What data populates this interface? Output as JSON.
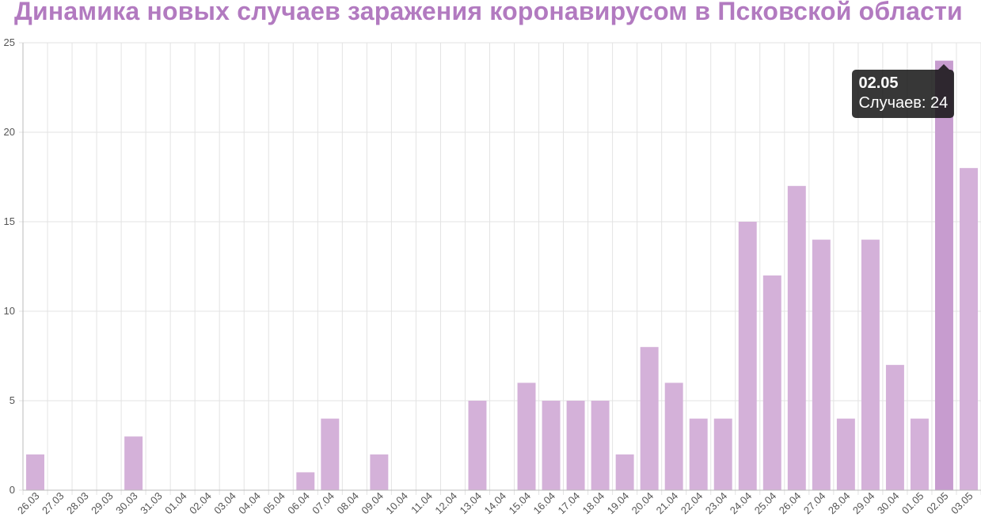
{
  "title": "Динамика новых случаев заражения коронавирусом в Псковской области",
  "colors": {
    "title": "#b27ac0",
    "bar": "#d4b1d9",
    "bar_active": "#c79ccf",
    "grid": "#e3e3e3",
    "axis": "#bbbbbb"
  },
  "tooltip": {
    "title": "02.05",
    "body": "Случаев: 24"
  },
  "chart_data": {
    "type": "bar",
    "title": "Динамика новых случаев заражения коронавирусом в Псковской области",
    "xlabel": "",
    "ylabel": "",
    "ylim": [
      0,
      25
    ],
    "yticks": [
      0,
      5,
      10,
      15,
      20,
      25
    ],
    "grid": true,
    "legend": "none",
    "active_index": 37,
    "categories": [
      "26.03",
      "27.03",
      "28.03",
      "29.03",
      "30.03",
      "31.03",
      "01.04",
      "02.04",
      "03.04",
      "04.04",
      "05.04",
      "06.04",
      "07.04",
      "08.04",
      "09.04",
      "10.04",
      "11.04",
      "12.04",
      "13.04",
      "14.04",
      "15.04",
      "16.04",
      "17.04",
      "18.04",
      "19.04",
      "20.04",
      "21.04",
      "22.04",
      "23.04",
      "24.04",
      "25.04",
      "26.04",
      "27.04",
      "28.04",
      "29.04",
      "30.04",
      "01.05",
      "02.05",
      "03.05"
    ],
    "series": [
      {
        "values": [
          2,
          0,
          0,
          0,
          3,
          0,
          0,
          0,
          0,
          0,
          0,
          1,
          4,
          0,
          2,
          0,
          0,
          0,
          5,
          0,
          6,
          5,
          5,
          5,
          2,
          8,
          6,
          4,
          4,
          15,
          12,
          17,
          14,
          4,
          14,
          7,
          4,
          24,
          18
        ]
      }
    ]
  }
}
